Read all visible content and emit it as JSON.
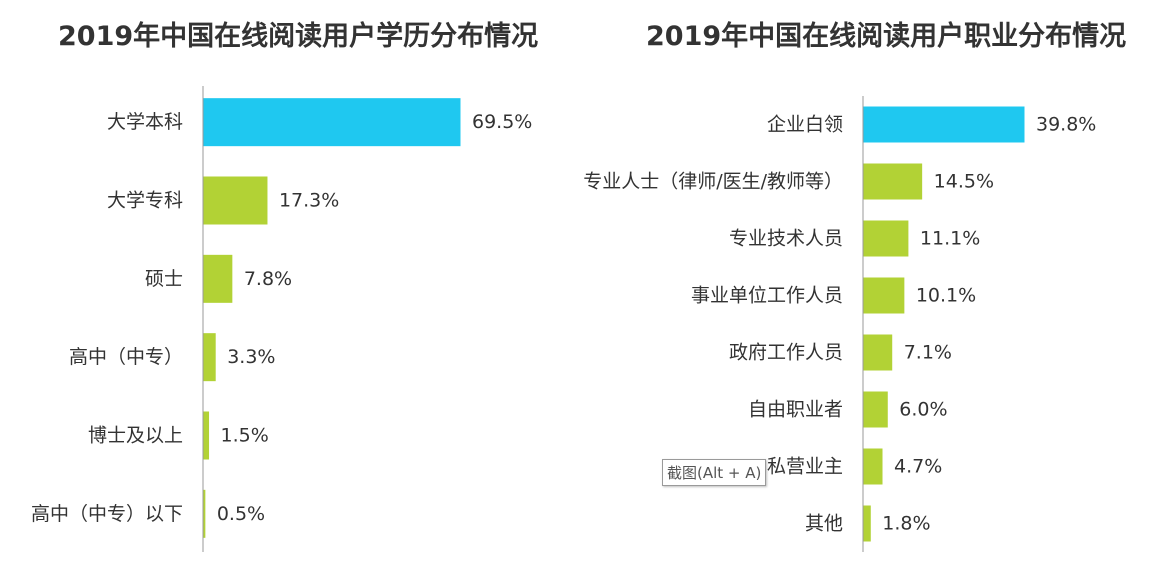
{
  "colors": {
    "highlight": "#1FC8F0",
    "bar": "#B2D235",
    "axis": "#999999",
    "text": "#333333"
  },
  "tooltip": {
    "text": "截图(Alt + A)"
  },
  "chart_data": [
    {
      "type": "bar",
      "orientation": "horizontal",
      "title": "2019年中国在线阅读用户学历分布情况",
      "categories": [
        "大学本科",
        "大学专科",
        "硕士",
        "高中（中专）",
        "博士及以上",
        "高中（中专）以下"
      ],
      "values": [
        69.5,
        17.3,
        7.8,
        3.3,
        1.5,
        0.5
      ],
      "value_labels": [
        "69.5%",
        "17.3%",
        "7.8%",
        "3.3%",
        "1.5%",
        "0.5%"
      ],
      "unit": "%",
      "highlight_index": 0
    },
    {
      "type": "bar",
      "orientation": "horizontal",
      "title": "2019年中国在线阅读用户职业分布情况",
      "categories": [
        "企业白领",
        "专业人士（律师/医生/教师等）",
        "专业技术人员",
        "事业单位工作人员",
        "政府工作人员",
        "自由职业者",
        "私营业主",
        "其他"
      ],
      "values": [
        39.8,
        14.5,
        11.1,
        10.1,
        7.1,
        6.0,
        4.7,
        1.8
      ],
      "value_labels": [
        "39.8%",
        "14.5%",
        "11.1%",
        "10.1%",
        "7.1%",
        "6.0%",
        "4.7%",
        "1.8%"
      ],
      "unit": "%",
      "highlight_index": 0
    }
  ]
}
